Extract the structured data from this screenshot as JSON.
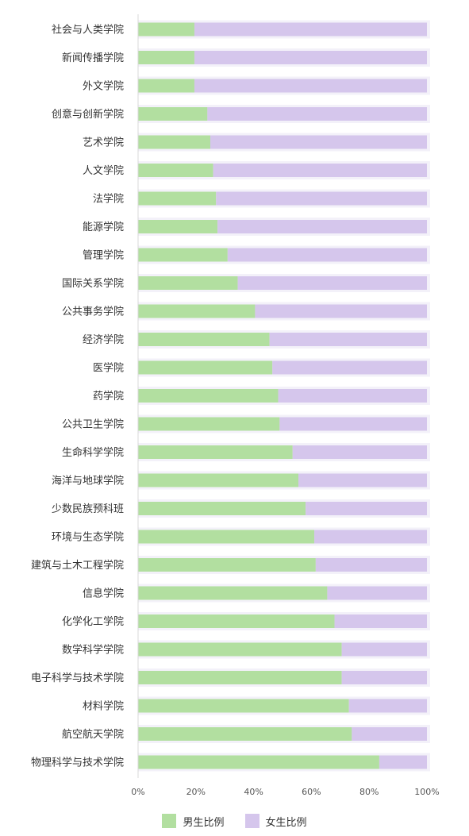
{
  "chart_data": {
    "type": "bar",
    "orientation": "horizontal",
    "stacked": true,
    "categories": [
      "社会与人类学院",
      "新闻传播学院",
      "外文学院",
      "创意与创新学院",
      "艺术学院",
      "人文学院",
      "法学院",
      "能源学院",
      "管理学院",
      "国际关系学院",
      "公共事务学院",
      "经济学院",
      "医学院",
      "药学院",
      "公共卫生学院",
      "生命科学学院",
      "海洋与地球学院",
      "少数民族预科班",
      "环境与生态学院",
      "建筑与土木工程学院",
      "信息学院",
      "化学化工学院",
      "数学科学学院",
      "电子科学与技术学院",
      "材料学院",
      "航空航天学院",
      "物理科学与技术学院"
    ],
    "series": [
      {
        "name": "男生比例",
        "color": "#b2dfa0",
        "values": [
          19.5,
          19.5,
          19.5,
          24,
          25,
          26,
          27,
          27.5,
          31,
          34.5,
          40.5,
          45.5,
          46.5,
          48.5,
          49,
          53.5,
          55.5,
          58,
          61,
          61.5,
          65.5,
          68,
          70.5,
          70.5,
          73,
          74,
          83.5
        ]
      },
      {
        "name": "女生比例",
        "color": "#d5c6ec",
        "values": [
          80.5,
          80.5,
          80.5,
          76,
          75,
          74,
          73,
          72.5,
          69,
          65.5,
          59.5,
          54.5,
          53.5,
          51.5,
          51,
          46.5,
          44.5,
          42,
          39,
          38.5,
          34.5,
          32,
          29.5,
          29.5,
          27,
          26,
          16.5
        ]
      }
    ],
    "x_ticks": [
      "0%",
      "20%",
      "40%",
      "60%",
      "80%",
      "100%"
    ],
    "xlim": [
      0,
      100
    ],
    "legend": "bottom",
    "grid": false
  }
}
